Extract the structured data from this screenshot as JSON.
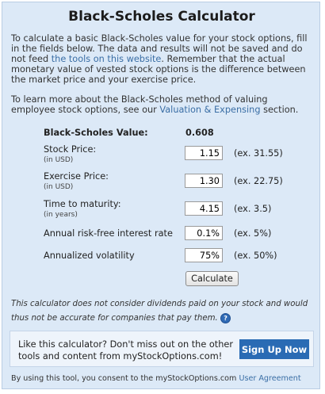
{
  "title": "Black-Scholes Calculator",
  "intro": {
    "p1_before": "To calculate a basic Black-Scholes value for your stock options, fill in the fields below. The data and results will not be saved and do not feed ",
    "p1_link": "the tools on this website",
    "p1_after": ". Remember that the actual monetary value of vested stock options is the difference between the market price and your exercise price.",
    "p2_before": "To learn more about the Black-Scholes method of valuing employee stock options, see our ",
    "p2_link": "Valuation & Expensing",
    "p2_after": " section."
  },
  "result": {
    "label": "Black-Scholes Value:",
    "value": "0.608"
  },
  "fields": {
    "stock_price": {
      "label": "Stock Price:",
      "unit": "(in USD)",
      "value": "1.15",
      "example": "(ex. 31.55)"
    },
    "exercise_price": {
      "label": "Exercise Price:",
      "unit": "(in USD)",
      "value": "1.30",
      "example": "(ex. 22.75)"
    },
    "time_to_maturity": {
      "label": "Time to maturity:",
      "unit": "(in years)",
      "value": "4.15",
      "example": "(ex. 3.5)"
    },
    "interest_rate": {
      "label": "Annual risk-free interest rate",
      "value": "0.1%",
      "example": "(ex. 5%)"
    },
    "volatility": {
      "label": "Annualized volatility",
      "value": "75%",
      "example": "(ex. 50%)"
    }
  },
  "calculate_label": "Calculate",
  "disclaimer": "This calculator does not consider dividends paid on your stock and would thus not be accurate for companies that pay them.",
  "help_icon": "?",
  "promo": {
    "text": "Like this calculator? Don't miss out on the other tools and content from myStockOptions.com!",
    "button": "Sign Up Now"
  },
  "footer": {
    "text": "By using this tool, you consent to the myStockOptions.com ",
    "link": "User Agreement"
  },
  "colors": {
    "panel_bg": "#dce9f7",
    "accent": "#2a6bb4",
    "link": "#3a6ea5"
  }
}
